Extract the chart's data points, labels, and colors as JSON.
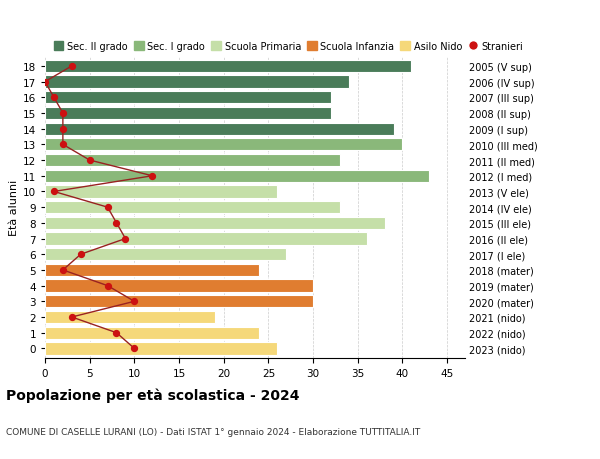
{
  "ages": [
    18,
    17,
    16,
    15,
    14,
    13,
    12,
    11,
    10,
    9,
    8,
    7,
    6,
    5,
    4,
    3,
    2,
    1,
    0
  ],
  "bar_values": [
    41,
    34,
    32,
    32,
    39,
    40,
    33,
    43,
    26,
    33,
    38,
    36,
    27,
    24,
    30,
    30,
    19,
    24,
    26
  ],
  "bar_colors": [
    "#4a7c59",
    "#4a7c59",
    "#4a7c59",
    "#4a7c59",
    "#4a7c59",
    "#8ab87a",
    "#8ab87a",
    "#8ab87a",
    "#c5dfa8",
    "#c5dfa8",
    "#c5dfa8",
    "#c5dfa8",
    "#c5dfa8",
    "#e07d30",
    "#e07d30",
    "#e07d30",
    "#f5d87a",
    "#f5d87a",
    "#f5d87a"
  ],
  "stranieri_values": [
    3,
    0,
    1,
    2,
    2,
    2,
    5,
    12,
    1,
    7,
    8,
    9,
    4,
    2,
    7,
    10,
    3,
    8,
    10
  ],
  "right_labels": [
    "2005 (V sup)",
    "2006 (IV sup)",
    "2007 (III sup)",
    "2008 (II sup)",
    "2009 (I sup)",
    "2010 (III med)",
    "2011 (II med)",
    "2012 (I med)",
    "2013 (V ele)",
    "2014 (IV ele)",
    "2015 (III ele)",
    "2016 (II ele)",
    "2017 (I ele)",
    "2018 (mater)",
    "2019 (mater)",
    "2020 (mater)",
    "2021 (nido)",
    "2022 (nido)",
    "2023 (nido)"
  ],
  "title": "Popolazione per età scolastica - 2024",
  "subtitle": "COMUNE DI CASELLE LURANI (LO) - Dati ISTAT 1° gennaio 2024 - Elaborazione TUTTITALIA.IT",
  "ylabel_left": "Età alunni",
  "xlim": [
    0,
    47
  ],
  "bar_height": 0.78,
  "legend_labels": [
    "Sec. II grado",
    "Sec. I grado",
    "Scuola Primaria",
    "Scuola Infanzia",
    "Asilo Nido",
    "Stranieri"
  ],
  "legend_colors": [
    "#4a7c59",
    "#8ab87a",
    "#c5dfa8",
    "#e07d30",
    "#f5d87a",
    "#cc1111"
  ],
  "line_color": "#992222",
  "dot_color": "#cc1111",
  "bg_color": "#ffffff",
  "grid_color": "#cccccc"
}
